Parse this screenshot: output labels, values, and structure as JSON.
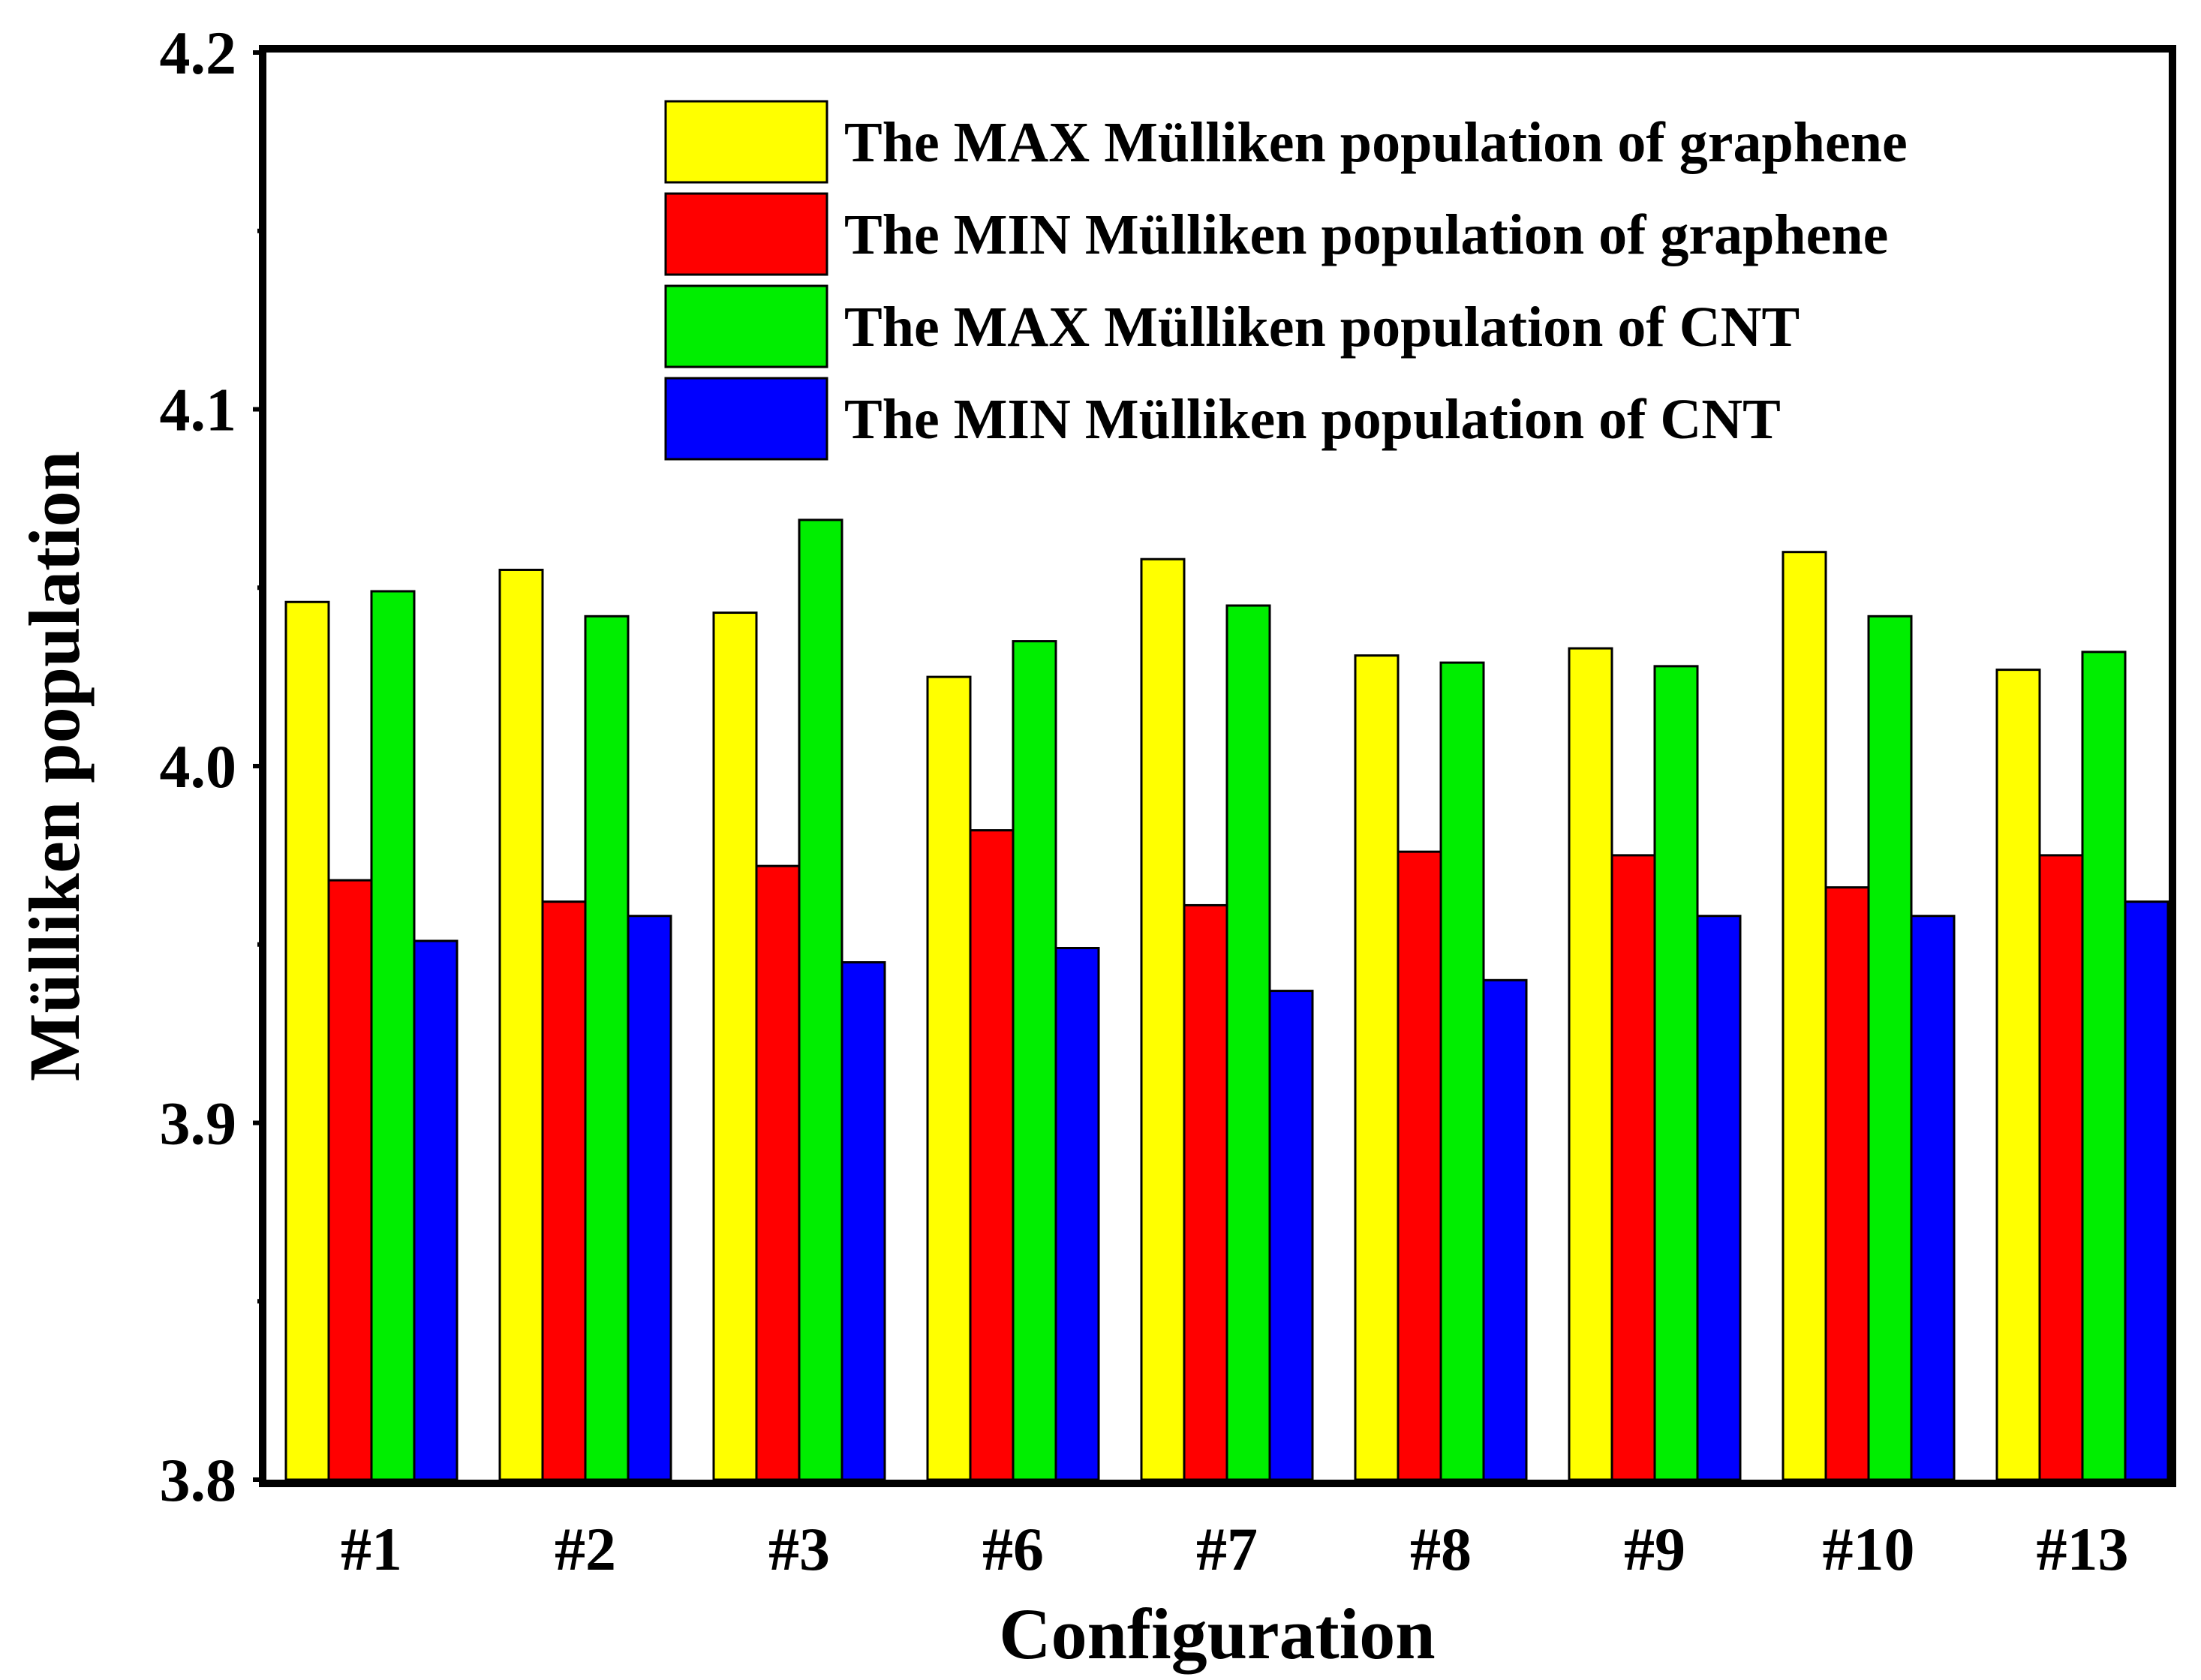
{
  "chart_data": {
    "type": "bar",
    "title": "",
    "xlabel": "Configuration",
    "ylabel": "Mülliken population",
    "ylim": [
      3.8,
      4.2
    ],
    "yticks": [
      "3.8",
      "3.9",
      "4.0",
      "4.1",
      "4.2"
    ],
    "grid": false,
    "legend_position": "top-right",
    "categories": [
      "#1",
      "#2",
      "#3",
      "#6",
      "#7",
      "#8",
      "#9",
      "#10",
      "#13"
    ],
    "series": [
      {
        "name": "The MAX Mülliken population of graphene",
        "color": "#ffff00",
        "values": [
          4.046,
          4.055,
          4.043,
          4.025,
          4.058,
          4.031,
          4.033,
          4.06,
          4.027
        ]
      },
      {
        "name": "The MIN Mülliken population of graphene",
        "color": "#ff0000",
        "values": [
          3.968,
          3.962,
          3.972,
          3.982,
          3.961,
          3.976,
          3.975,
          3.966,
          3.975
        ]
      },
      {
        "name": "The MAX Mülliken population of CNT",
        "color": "#00ee00",
        "values": [
          4.049,
          4.042,
          4.069,
          4.035,
          4.045,
          4.029,
          4.028,
          4.042,
          4.032
        ]
      },
      {
        "name": "The MIN Mülliken population of CNT",
        "color": "#0000ff",
        "values": [
          3.951,
          3.958,
          3.945,
          3.949,
          3.937,
          3.94,
          3.958,
          3.958,
          3.962
        ]
      }
    ]
  }
}
